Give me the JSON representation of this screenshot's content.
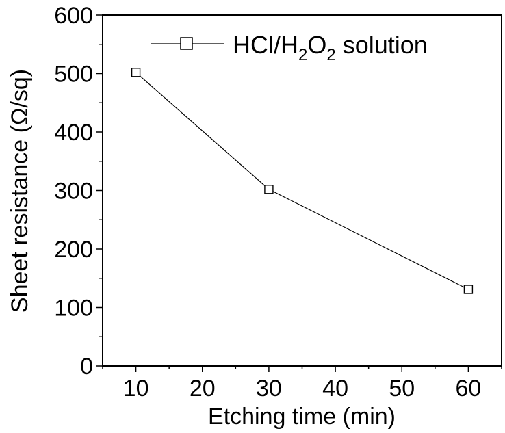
{
  "chart_data": {
    "type": "line",
    "x": [
      10,
      30,
      60
    ],
    "series": [
      {
        "name": "HCl/H2O2 solution",
        "y": [
          502,
          302,
          131
        ]
      }
    ],
    "legend": {
      "prefix": "HCl/H",
      "sub1": "2",
      "mid": "O",
      "sub2": "2",
      "suffix": " solution",
      "placement": "top-right"
    },
    "xlabel": "Etching time (min)",
    "ylabel": "Sheet resistance (Ω/sq)",
    "xlim": [
      5,
      65
    ],
    "ylim": [
      0,
      600
    ],
    "xticks": [
      10,
      20,
      30,
      40,
      50,
      60
    ],
    "yticks": [
      0,
      100,
      200,
      300,
      400,
      500,
      600
    ],
    "grid": false,
    "marker": "open-square",
    "line_color": "#000000"
  }
}
